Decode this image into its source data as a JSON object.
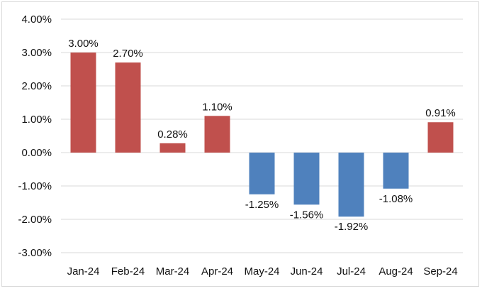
{
  "chart_data": {
    "type": "bar",
    "categories": [
      "Jan-24",
      "Feb-24",
      "Mar-24",
      "Apr-24",
      "May-24",
      "Jun-24",
      "Jul-24",
      "Aug-24",
      "Sep-24"
    ],
    "values": [
      3.0,
      2.7,
      0.28,
      1.1,
      -1.25,
      -1.56,
      -1.92,
      -1.08,
      0.91
    ],
    "data_labels": [
      "3.00%",
      "2.70%",
      "0.28%",
      "1.10%",
      "-1.25%",
      "-1.56%",
      "-1.92%",
      "-1.08%",
      "0.91%"
    ],
    "yticks": [
      4,
      3,
      2,
      1,
      0,
      -1,
      -2,
      -3
    ],
    "ytick_labels": [
      "4.00%",
      "3.00%",
      "2.00%",
      "1.00%",
      "0.00%",
      "-1.00%",
      "-2.00%",
      "-3.00%"
    ],
    "ylim": [
      -3,
      4
    ],
    "title": "",
    "xlabel": "",
    "ylabel": "",
    "grid": true,
    "legend": false,
    "colors": {
      "positive": "#c0504d",
      "negative": "#4f81bd",
      "grid": "#d9d9d9",
      "frame": "#d9d9d9"
    }
  }
}
